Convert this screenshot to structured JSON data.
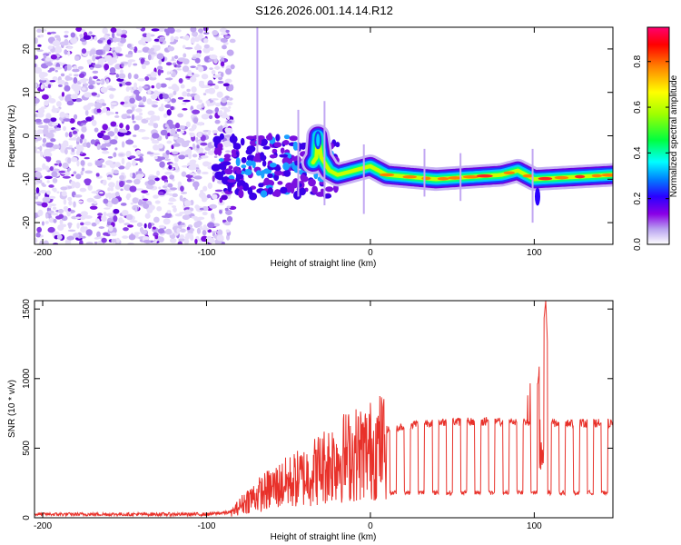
{
  "title": "S126.2026.001.14.14.R12",
  "chart_data": [
    {
      "type": "heatmap",
      "name": "spectrogram",
      "xlabel": "Height of straight line (km)",
      "ylabel": "Frequency (Hz)",
      "xlim": [
        -205,
        148
      ],
      "ylim": [
        -25,
        25
      ],
      "xticks": [
        -200,
        -100,
        0,
        100
      ],
      "yticks": [
        -20,
        -10,
        0,
        10,
        20
      ],
      "colorbar": {
        "label": "Normalized spectral amplitude",
        "range": [
          0,
          0.95
        ],
        "ticks": [
          "0.0",
          "0.2",
          "0.4",
          "0.6",
          "0.8"
        ],
        "tick_values": [
          0.0,
          0.2,
          0.4,
          0.6,
          0.8
        ],
        "colors": [
          "#ffffff",
          "#b9a3f0",
          "#8a00e6",
          "#2a00ff",
          "#0080ff",
          "#00ffff",
          "#00ff00",
          "#ffff00",
          "#ff8000",
          "#ff0000",
          "#ff0070"
        ]
      },
      "features": {
        "noise_region_x": [
          -205,
          -90
        ],
        "tone_track": [
          {
            "x": -90,
            "y": -11
          },
          {
            "x": -60,
            "y": -10
          },
          {
            "x": -40,
            "y": -9
          },
          {
            "x": -33,
            "y": -5
          },
          {
            "x": -32,
            "y": 0
          },
          {
            "x": -30,
            "y": -5
          },
          {
            "x": -25,
            "y": -8
          },
          {
            "x": -20,
            "y": -9
          },
          {
            "x": -10,
            "y": -8
          },
          {
            "x": 0,
            "y": -7
          },
          {
            "x": 10,
            "y": -9
          },
          {
            "x": 40,
            "y": -10
          },
          {
            "x": 80,
            "y": -9
          },
          {
            "x": 90,
            "y": -8
          },
          {
            "x": 100,
            "y": -10
          },
          {
            "x": 148,
            "y": -9
          }
        ]
      }
    },
    {
      "type": "line",
      "name": "snr",
      "xlabel": "Height of straight line (km)",
      "ylabel": "SNR (10 * v/v)",
      "xlim": [
        -205,
        148
      ],
      "ylim": [
        0,
        1560
      ],
      "xticks": [
        -200,
        -100,
        0,
        100
      ],
      "yticks": [
        0,
        500,
        1000,
        1500
      ],
      "color": "#e8312a",
      "key_points": [
        {
          "x": -205,
          "y": 25
        },
        {
          "x": -100,
          "y": 25
        },
        {
          "x": -85,
          "y": 40
        },
        {
          "x": -75,
          "y": 150
        },
        {
          "x": -60,
          "y": 250
        },
        {
          "x": -40,
          "y": 350
        },
        {
          "x": -20,
          "y": 500
        },
        {
          "x": 0,
          "y": 570
        },
        {
          "x": 10,
          "y": 630
        },
        {
          "x": 30,
          "y": 680
        },
        {
          "x": 50,
          "y": 690
        },
        {
          "x": 80,
          "y": 690
        },
        {
          "x": 100,
          "y": 690
        },
        {
          "x": 107,
          "y": 1560
        },
        {
          "x": 110,
          "y": 680
        },
        {
          "x": 148,
          "y": 680
        }
      ],
      "dropout_level": 180
    }
  ]
}
